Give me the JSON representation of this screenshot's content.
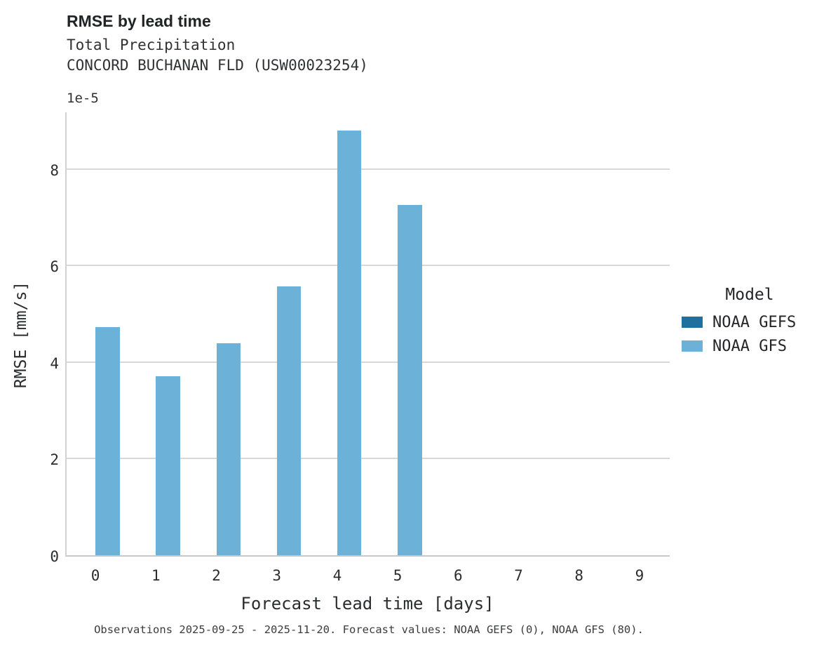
{
  "chart_data": {
    "type": "bar",
    "title": "RMSE by lead time",
    "subtitle": [
      "Total Precipitation",
      "CONCORD BUCHANAN FLD (USW00023254)"
    ],
    "y_offset_text": "1e-5",
    "xlabel": "Forecast lead time [days]",
    "ylabel": "RMSE [mm/s]",
    "categories": [
      "0",
      "1",
      "2",
      "3",
      "4",
      "5",
      "6",
      "7",
      "8",
      "9"
    ],
    "yticks": [
      0,
      2,
      4,
      6,
      8
    ],
    "ylim": [
      0,
      9.2
    ],
    "value_scale_note": "bar values are in units of 1e-5 mm/s as shown by axis offset",
    "grid": "horizontal-only",
    "legend_position": "center-right",
    "legend_title": "Model",
    "series": [
      {
        "name": "NOAA GEFS",
        "color": "#1f6f9f",
        "values": [
          0,
          0,
          0,
          0,
          0,
          0,
          0,
          0,
          0,
          0
        ]
      },
      {
        "name": "NOAA GFS",
        "color": "#6cb1d8",
        "values": [
          4.73,
          3.7,
          4.39,
          5.57,
          8.79,
          7.25,
          0,
          0,
          0,
          0
        ]
      }
    ],
    "caption": "Observations 2025-09-25 - 2025-11-20. Forecast values: NOAA GEFS (0), NOAA GFS (80)."
  },
  "colors": {
    "gefs": "#1f6f9f",
    "gfs": "#6cb1d8",
    "gridline": "#d8d8d8",
    "axis_spine": "#cccccc"
  }
}
